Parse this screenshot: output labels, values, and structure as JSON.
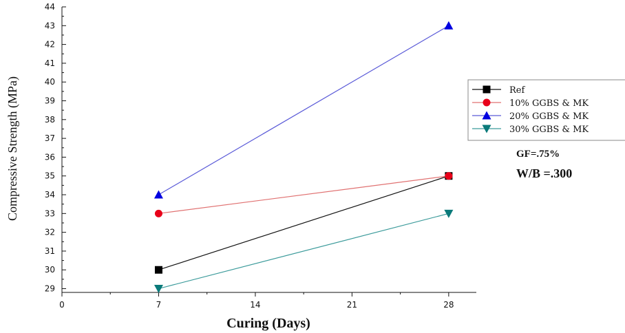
{
  "chart_data": {
    "type": "line",
    "title": "",
    "xlabel": "Curing (Days)",
    "ylabel": "Compressive Strength (MPa)",
    "xlim": [
      0,
      30
    ],
    "ylim": [
      28.8,
      44
    ],
    "xticks": [
      0,
      7,
      14,
      21,
      28
    ],
    "yticks": [
      29,
      30,
      31,
      32,
      33,
      34,
      35,
      36,
      37,
      38,
      39,
      40,
      41,
      42,
      43,
      44
    ],
    "grid": false,
    "legend_position": "right",
    "x": [
      7,
      28
    ],
    "series": [
      {
        "name": "Ref",
        "values": [
          30,
          35
        ],
        "color": "#000000",
        "line_color": "#111111",
        "marker": "square"
      },
      {
        "name": "10% GGBS & MK",
        "values": [
          33,
          35
        ],
        "color": "#e8001a",
        "line_color": "#e07070",
        "marker": "circle"
      },
      {
        "name": "20% GGBS & MK",
        "values": [
          34,
          43
        ],
        "color": "#0000e0",
        "line_color": "#5a5ad8",
        "marker": "triangle-up"
      },
      {
        "name": "30% GGBS & MK",
        "values": [
          29,
          33
        ],
        "color": "#0a7a7a",
        "line_color": "#3a9a9a",
        "marker": "triangle-down"
      }
    ],
    "annotations": [
      "GF=.75%",
      "W/B =.300"
    ]
  }
}
